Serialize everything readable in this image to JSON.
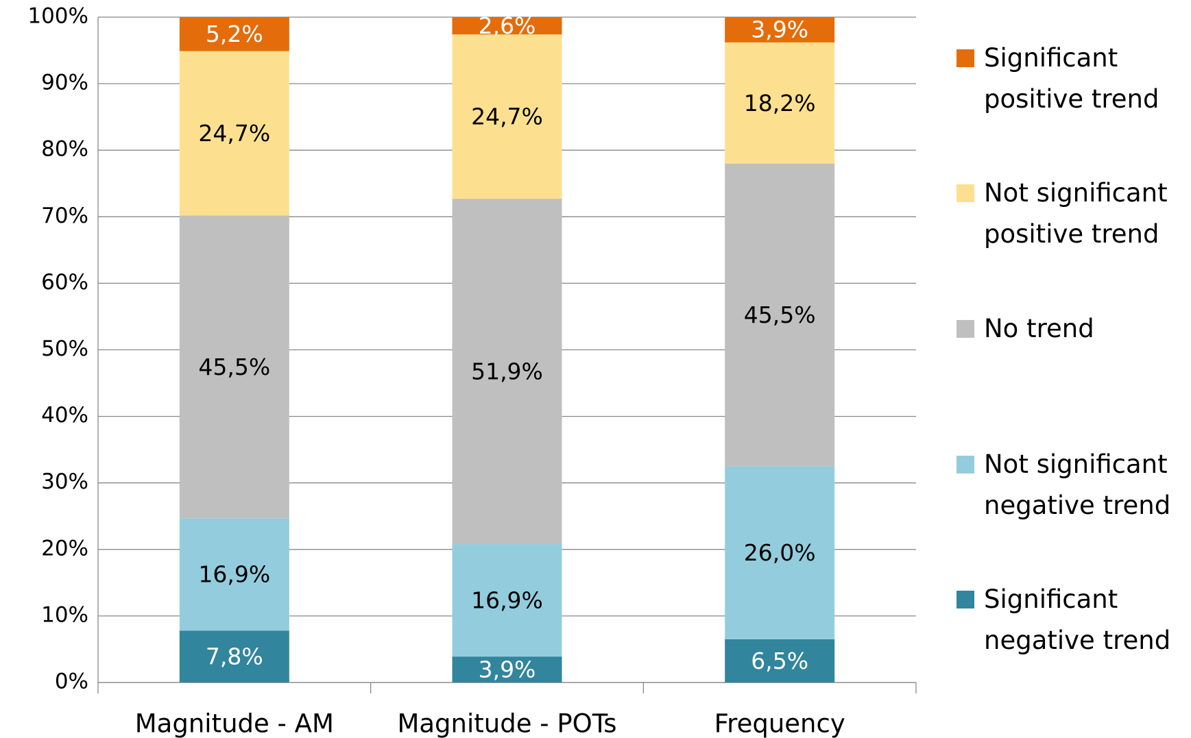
{
  "chart_data": {
    "type": "stacked_bar",
    "categories": [
      "Magnitude - AM",
      "Magnitude - POTs",
      "Frequency"
    ],
    "series": [
      {
        "name": "Significant negative trend",
        "color": "#31859c",
        "label_color": "#ffffff",
        "values": [
          7.8,
          3.9,
          6.5
        ],
        "value_labels": [
          "7,8%",
          "3,9%",
          "6,5%"
        ]
      },
      {
        "name": "Not significant negative trend",
        "color": "#93cddd",
        "label_color": "#000000",
        "values": [
          16.9,
          16.9,
          26.0
        ],
        "value_labels": [
          "16,9%",
          "16,9%",
          "26,0%"
        ]
      },
      {
        "name": "No trend",
        "color": "#bfbfbf",
        "label_color": "#000000",
        "values": [
          45.5,
          51.9,
          45.5
        ],
        "value_labels": [
          "45,5%",
          "51,9%",
          "45,5%"
        ]
      },
      {
        "name": "Not significant positive trend",
        "color": "#fde08f",
        "label_color": "#000000",
        "values": [
          24.7,
          24.7,
          18.2
        ],
        "value_labels": [
          "24,7%",
          "24,7%",
          "18,2%"
        ]
      },
      {
        "name": "Significant positive trend",
        "color": "#e46c0a",
        "label_color": "#ffffff",
        "values": [
          5.2,
          2.6,
          3.9
        ],
        "value_labels": [
          "5,2%",
          "2,6%",
          "3,9%"
        ]
      }
    ],
    "ylim": [
      0,
      100
    ],
    "yticks": [
      {
        "value": 0,
        "label": "0%"
      },
      {
        "value": 10,
        "label": "10%"
      },
      {
        "value": 20,
        "label": "20%"
      },
      {
        "value": 30,
        "label": "30%"
      },
      {
        "value": 40,
        "label": "40%"
      },
      {
        "value": 50,
        "label": "50%"
      },
      {
        "value": 60,
        "label": "60%"
      },
      {
        "value": 70,
        "label": "70%"
      },
      {
        "value": 80,
        "label": "80%"
      },
      {
        "value": 90,
        "label": "90%"
      },
      {
        "value": 100,
        "label": "100%"
      }
    ],
    "grid": true,
    "legend": "right"
  }
}
